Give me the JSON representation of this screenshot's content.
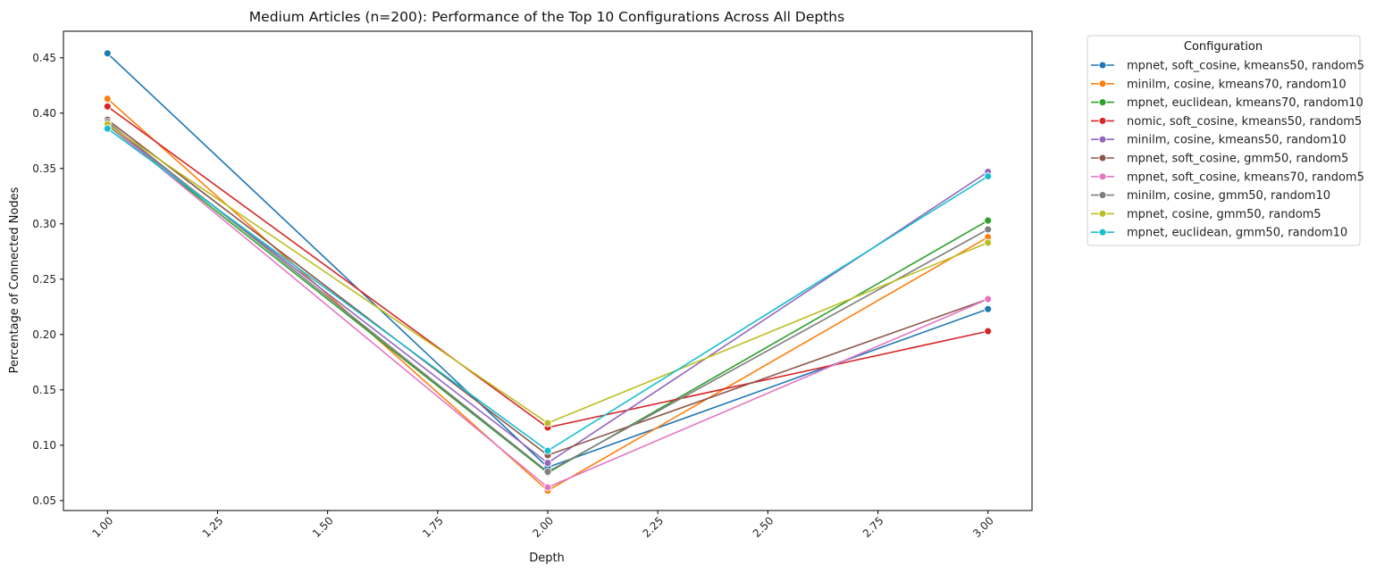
{
  "chart_data": {
    "type": "line",
    "title": "Medium Articles (n=200): Performance of the Top 10 Configurations Across All Depths",
    "xlabel": "Depth",
    "ylabel": "Percentage of Connected Nodes",
    "x": [
      1.0,
      2.0,
      3.0
    ],
    "xlim": [
      0.9,
      3.1
    ],
    "ylim": [
      0.041,
      0.474
    ],
    "xticks": [
      "1.00",
      "1.25",
      "1.50",
      "1.75",
      "2.00",
      "2.25",
      "2.50",
      "2.75",
      "3.00"
    ],
    "yticks": [
      "0.05",
      "0.10",
      "0.15",
      "0.20",
      "0.25",
      "0.30",
      "0.35",
      "0.40",
      "0.45"
    ],
    "grid": false,
    "legend": {
      "title": "Configuration",
      "placement": "outside-top-right"
    },
    "series": [
      {
        "name": "mpnet, soft_cosine, kmeans50, random5",
        "color": "#1f77b4",
        "values": [
          0.454,
          0.08,
          0.223
        ]
      },
      {
        "name": "minilm, cosine, kmeans70, random10",
        "color": "#ff7f0e",
        "values": [
          0.413,
          0.059,
          0.288
        ]
      },
      {
        "name": "mpnet, euclidean, kmeans70, random10",
        "color": "#2ca02c",
        "values": [
          0.389,
          0.075,
          0.303
        ]
      },
      {
        "name": "nomic, soft_cosine, kmeans50, random5",
        "color": "#d62728",
        "values": [
          0.406,
          0.116,
          0.203
        ]
      },
      {
        "name": "minilm, cosine, kmeans50, random10",
        "color": "#9467bd",
        "values": [
          0.39,
          0.084,
          0.347
        ]
      },
      {
        "name": "mpnet, soft_cosine, gmm50, random5",
        "color": "#8c564b",
        "values": [
          0.394,
          0.091,
          0.232
        ]
      },
      {
        "name": "mpnet, soft_cosine, kmeans70, random5",
        "color": "#e377c2",
        "values": [
          0.39,
          0.062,
          0.232
        ]
      },
      {
        "name": "minilm, cosine, gmm50, random10",
        "color": "#7f7f7f",
        "values": [
          0.392,
          0.076,
          0.295
        ]
      },
      {
        "name": "mpnet, cosine, gmm50, random5",
        "color": "#bcbd22",
        "values": [
          0.39,
          0.12,
          0.283
        ]
      },
      {
        "name": "mpnet, euclidean, gmm50, random10",
        "color": "#17becf",
        "values": [
          0.386,
          0.095,
          0.343
        ]
      }
    ]
  }
}
